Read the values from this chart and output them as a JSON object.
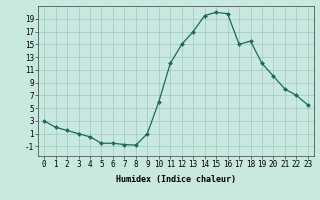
{
  "x": [
    0,
    1,
    2,
    3,
    4,
    5,
    6,
    7,
    8,
    9,
    10,
    11,
    12,
    13,
    14,
    15,
    16,
    17,
    18,
    19,
    20,
    21,
    22,
    23
  ],
  "y": [
    3,
    2,
    1.5,
    1,
    0.5,
    -0.5,
    -0.5,
    -0.7,
    -0.8,
    1,
    6,
    12,
    15,
    17,
    19.5,
    20,
    19.8,
    15,
    15.5,
    12,
    10,
    8,
    7,
    5.5
  ],
  "line_color": "#1a6b5a",
  "marker": "D",
  "marker_size": 2,
  "bg_color": "#c8e8e0",
  "grid_color": "#a8ccc4",
  "xlabel": "Humidex (Indice chaleur)",
  "xlim": [
    -0.5,
    23.5
  ],
  "ylim": [
    -2.5,
    21
  ],
  "yticks": [
    -1,
    1,
    3,
    5,
    7,
    9,
    11,
    13,
    15,
    17,
    19
  ],
  "xticks": [
    0,
    1,
    2,
    3,
    4,
    5,
    6,
    7,
    8,
    9,
    10,
    11,
    12,
    13,
    14,
    15,
    16,
    17,
    18,
    19,
    20,
    21,
    22,
    23
  ],
  "label_fontsize": 6,
  "tick_fontsize": 5.5
}
